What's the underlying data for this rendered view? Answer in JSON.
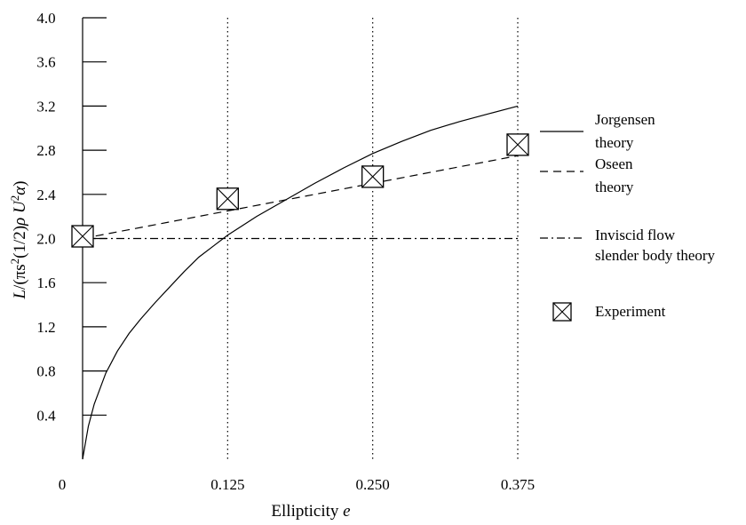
{
  "chart_data": {
    "type": "line",
    "xlabel": "Ellipticity e",
    "ylabel": "L/(πs²(1/2)ρU²α)",
    "xlim": [
      0,
      0.375
    ],
    "ylim": [
      0,
      4.0
    ],
    "x_ticks": [
      0.125,
      0.25,
      0.375
    ],
    "x_tick_labels": [
      "0.125",
      "0.250",
      "0.375"
    ],
    "x_origin_label": "0",
    "y_ticks": [
      0.4,
      0.8,
      1.2,
      1.6,
      2.0,
      2.4,
      2.8,
      3.2,
      3.6,
      4.0
    ],
    "y_tick_labels": [
      "0.4",
      "0.8",
      "1.2",
      "1.6",
      "2.0",
      "2.4",
      "2.8",
      "3.2",
      "3.6",
      "4.0"
    ],
    "vertical_reference_lines": [
      0.125,
      0.25,
      0.375
    ],
    "series": [
      {
        "name": "Jorgensen theory",
        "style": "solid",
        "x": [
          0,
          0.005,
          0.01,
          0.02,
          0.03,
          0.04,
          0.05,
          0.0625,
          0.075,
          0.0875,
          0.1,
          0.1125,
          0.125,
          0.15,
          0.175,
          0.2,
          0.225,
          0.25,
          0.275,
          0.3,
          0.325,
          0.35,
          0.375
        ],
        "y": [
          0,
          0.3,
          0.5,
          0.78,
          0.98,
          1.14,
          1.27,
          1.42,
          1.56,
          1.7,
          1.83,
          1.93,
          2.03,
          2.2,
          2.35,
          2.5,
          2.64,
          2.77,
          2.88,
          2.98,
          3.06,
          3.13,
          3.2
        ]
      },
      {
        "name": "Oseen theory",
        "style": "dashed",
        "x": [
          0,
          0.375
        ],
        "y": [
          2.0,
          2.75
        ]
      },
      {
        "name": "Inviscid flow slender body theory",
        "style": "dash-dot",
        "x": [
          0,
          0.375
        ],
        "y": [
          2.0,
          2.0
        ]
      },
      {
        "name": "Experiment",
        "style": "marker",
        "x": [
          0,
          0.125,
          0.25,
          0.375
        ],
        "y": [
          2.02,
          2.36,
          2.56,
          2.85
        ]
      }
    ],
    "legend": {
      "placement": "right",
      "entries": [
        {
          "lines": [
            "Jorgensen",
            "theory"
          ],
          "style": "solid"
        },
        {
          "lines": [
            "Oseen",
            "theory"
          ],
          "style": "dashed"
        },
        {
          "lines": [
            "Inviscid flow",
            "slender body theory"
          ],
          "style": "dash-dot"
        },
        {
          "lines": [
            "Experiment"
          ],
          "style": "marker"
        }
      ]
    },
    "colors": {
      "ink": "#000000",
      "background": "#ffffff"
    }
  }
}
